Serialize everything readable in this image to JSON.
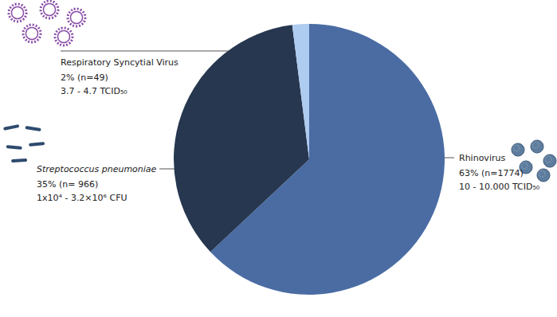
{
  "chart_data": {
    "type": "pie",
    "categories": [
      "Rhinovirus",
      "Streptococcus pneumoniae",
      "Respiratory Syncytial Virus"
    ],
    "values": [
      63,
      35,
      2
    ],
    "value_labels": [
      "63% (n=1774)",
      "35% (n= 966)",
      "2% (n=49)"
    ],
    "ranges": [
      "10 - 10.000 TCID₅₀",
      "1x10⁴ - 3.2×10⁶ CFU",
      "3.7 - 4.7 TCID₅₀"
    ],
    "colors": [
      "#4a6ca3",
      "#26374f",
      "#aecbf0"
    ],
    "data_labels": true
  }
}
